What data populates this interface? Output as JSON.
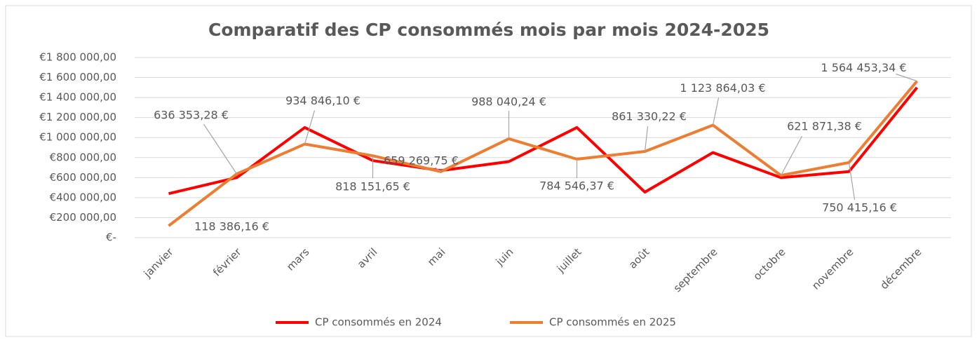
{
  "chart_data": {
    "type": "line",
    "title": "Comparatif des CP consommés mois par mois 2024-2025",
    "categories": [
      "janvier",
      "février",
      "mars",
      "avril",
      "mai",
      "juin",
      "juillet",
      "août",
      "septembre",
      "octobre",
      "novembre",
      "décembre"
    ],
    "series": [
      {
        "name": "CP consommés en 2024",
        "color": "#ff0000",
        "values": [
          440000,
          600000,
          1100000,
          770000,
          670000,
          760000,
          1100000,
          455000,
          850000,
          600000,
          660000,
          1500000
        ]
      },
      {
        "name": "CP consommés en 2025",
        "color": "#ed7d31",
        "values": [
          118386.16,
          636353.28,
          934846.1,
          818151.65,
          659269.75,
          988040.24,
          784546.37,
          861330.22,
          1123864.03,
          621871.38,
          750415.16,
          1564453.34
        ],
        "value_labels": [
          "118 386,16 €",
          "636 353,28 €",
          "934 846,10 €",
          "818 151,65 €",
          "659 269,75 €",
          "988 040,24 €",
          "784 546,37 €",
          "861 330,22 €",
          "1 123 864,03 €",
          "621 871,38 €",
          "750 415,16 €",
          "1 564 453,34 €"
        ]
      }
    ],
    "ylim": [
      0,
      1800000
    ],
    "yticks": [
      {
        "value": 0,
        "label": "€-"
      },
      {
        "value": 200000,
        "label": "€200 000,00"
      },
      {
        "value": 400000,
        "label": "€400 000,00"
      },
      {
        "value": 600000,
        "label": "€600 000,00"
      },
      {
        "value": 800000,
        "label": "€800 000,00"
      },
      {
        "value": 1000000,
        "label": "€1 000 000,00"
      },
      {
        "value": 1200000,
        "label": "€1 200 000,00"
      },
      {
        "value": 1400000,
        "label": "€1 400 000,00"
      },
      {
        "value": 1600000,
        "label": "€1 600 000,00"
      },
      {
        "value": 1800000,
        "label": "€1 800 000,00"
      }
    ],
    "grid": true,
    "legend": "bottom"
  }
}
